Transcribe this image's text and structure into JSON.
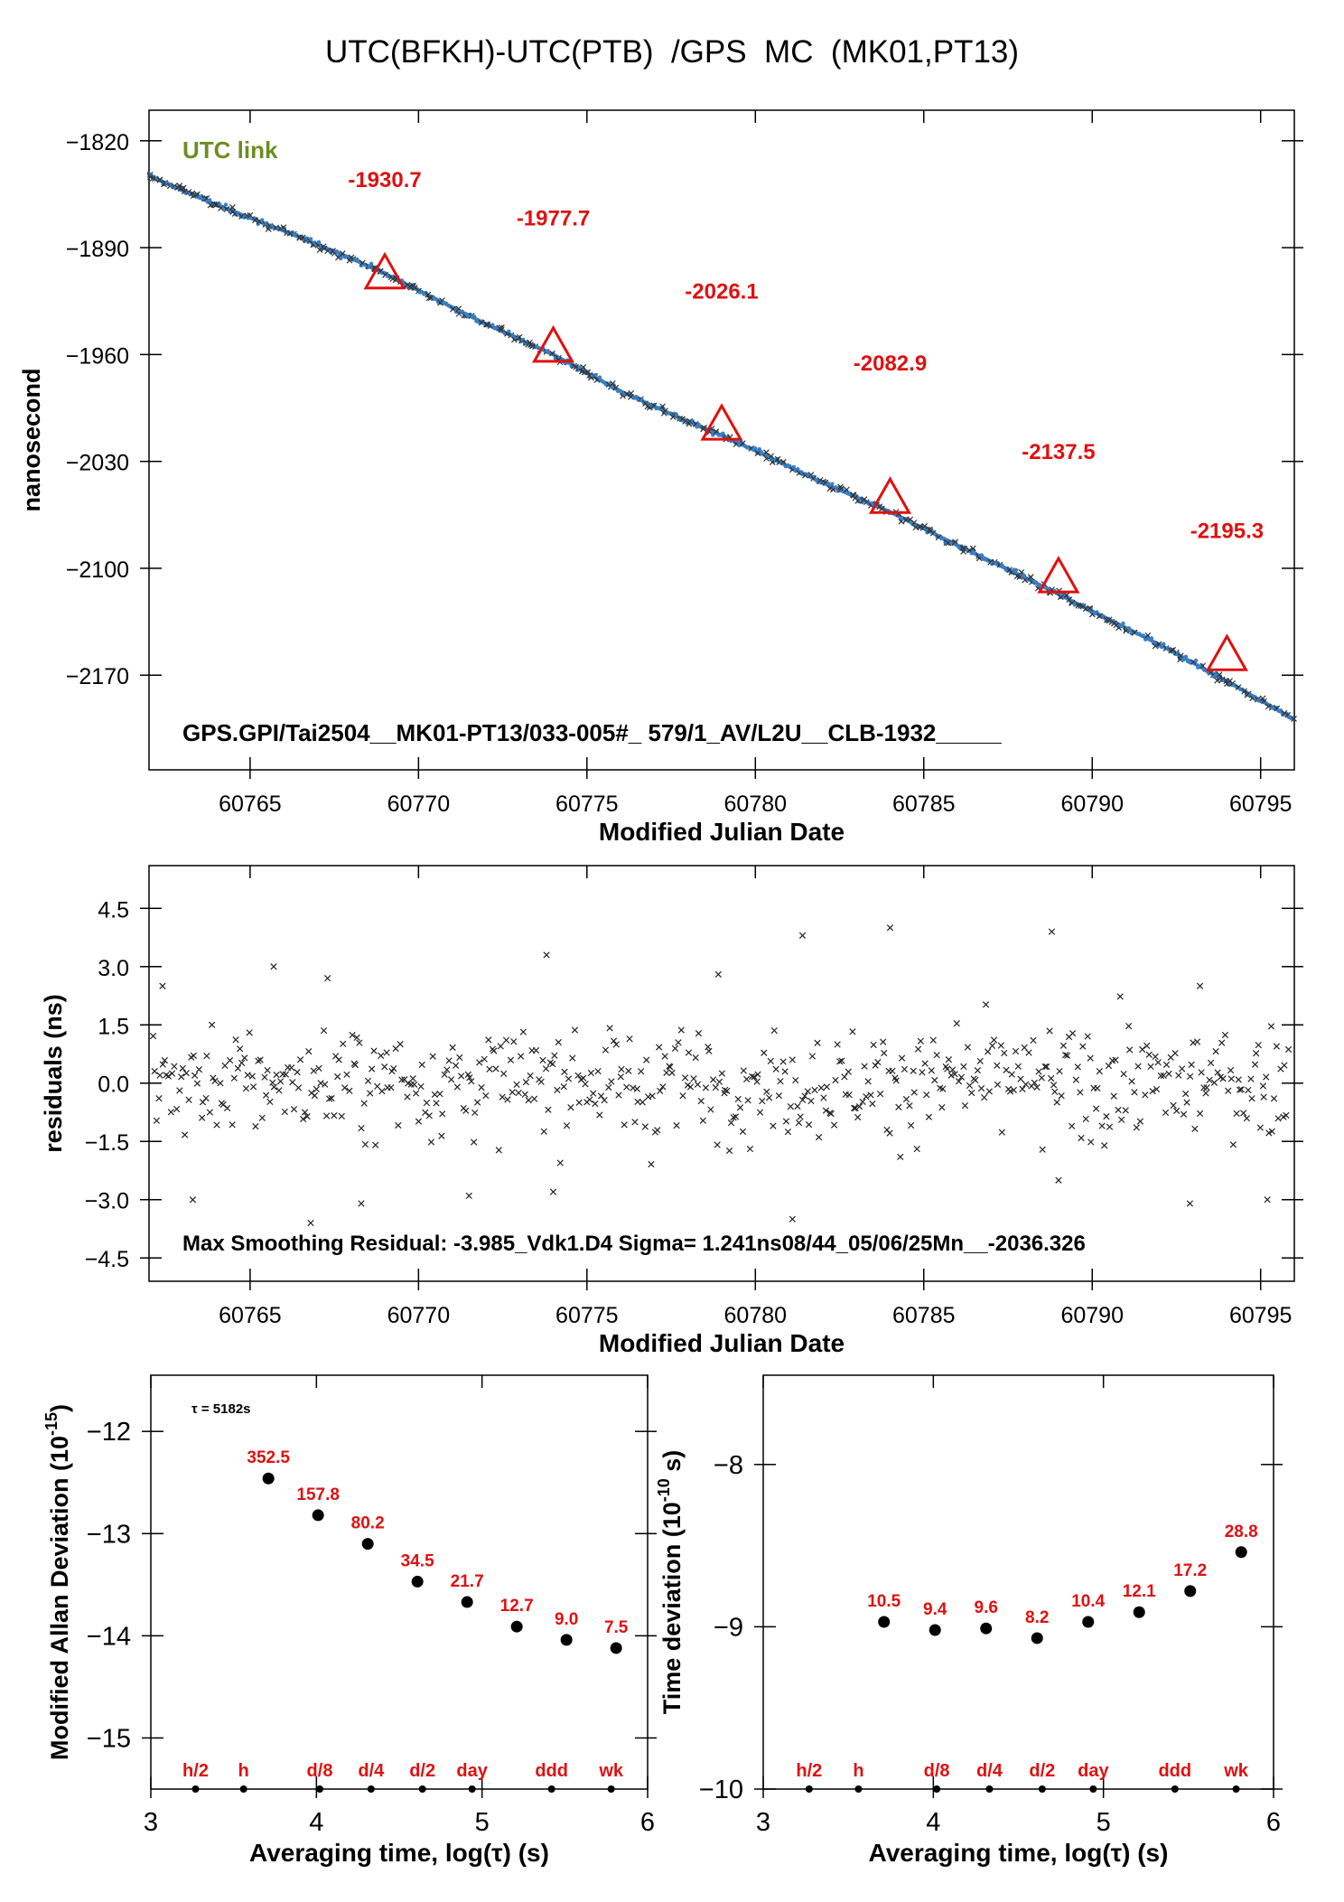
{
  "page_title": "UTC(BFKH)-UTC(PTB)  /GPS  MC  (MK01,PT13)",
  "colors": {
    "series": "#3a7fc4",
    "marker": "#e01010",
    "annotation": "#e01010",
    "link": "#6b8e23",
    "axis": "#000000"
  },
  "chart_data": [
    {
      "id": "link",
      "type": "scatter",
      "title": "UTC(BFKH)-UTC(PTB)  /GPS  MC  (MK01,PT13)",
      "xlabel": "Modified Julian Date",
      "ylabel": "nanosecond",
      "xlim": [
        60762,
        60796
      ],
      "ylim": [
        -2232,
        -1800
      ],
      "xticks": [
        60765,
        60770,
        60775,
        60780,
        60785,
        60790,
        60795
      ],
      "yticks": [
        -1820,
        -1890,
        -1960,
        -2030,
        -2100,
        -2170
      ],
      "tag": "UTC link",
      "footer": "GPS.GPI/Tai2504__MK01-PT13/033-005#_  579/1_AV/L2U__CLB-1932_____",
      "series": [
        {
          "x": [
            60762.0,
            60764.0,
            60766.0,
            60768.0,
            60769.0,
            60770.0,
            60772.0,
            60774.0,
            60776.0,
            60778.0,
            60779.0,
            60780.0,
            60782.0,
            60784.0,
            60786.0,
            60788.0,
            60789.0,
            60790.0,
            60792.0,
            60794.0,
            60796.0
          ],
          "y": [
            -1843.0,
            -1862.0,
            -1879.0,
            -1897.0,
            -1907.0,
            -1918.0,
            -1940.0,
            -1960.0,
            -1984.0,
            -2004.0,
            -2013.0,
            -2023.0,
            -2044.0,
            -2063.0,
            -2085.0,
            -2106.0,
            -2117.0,
            -2128.0,
            -2150.0,
            -2174.0,
            -2199.0
          ]
        }
      ],
      "markers": {
        "x": [
          60769,
          60774,
          60779,
          60784,
          60789,
          60794
        ],
        "y": [
          -1907,
          -1955,
          -2006,
          -2054,
          -2106,
          -2157
        ]
      },
      "annotations": [
        {
          "x": 60769.0,
          "y": -1845.0,
          "text": "-1930.7"
        },
        {
          "x": 60774.0,
          "y": -1870.0,
          "text": "-1977.7"
        },
        {
          "x": 60779.0,
          "y": -1918.0,
          "text": "-2026.1"
        },
        {
          "x": 60784.0,
          "y": -1965.0,
          "text": "-2082.9"
        },
        {
          "x": 60789.0,
          "y": -2023.0,
          "text": "-2137.5"
        },
        {
          "x": 60794.0,
          "y": -2075.0,
          "text": "-2195.3"
        }
      ]
    },
    {
      "id": "residuals",
      "type": "scatter",
      "xlabel": "Modified Julian Date",
      "ylabel": "residuals (ns)",
      "xlim": [
        60762,
        60796
      ],
      "ylim": [
        -5.1,
        5.6
      ],
      "xticks": [
        60765,
        60770,
        60775,
        60780,
        60785,
        60790,
        60795
      ],
      "yticks": [
        4.5,
        3.0,
        1.5,
        0.0,
        -1.5,
        -3.0,
        -4.5
      ],
      "ytick_labels": [
        "4.5",
        "3.0",
        "1.5",
        "0.0",
        "−1.5",
        "−3.0",
        "−4.5"
      ],
      "footer": "Max Smoothing Residual: -3.985_Vdk1.D4  Sigma= 1.241ns08/44_05/06/25Mn__-2036.326",
      "outliers": {
        "x": [
          60762.4,
          60763.3,
          60765.7,
          60766.8,
          60767.3,
          60768.3,
          60771.5,
          60773.8,
          60774.0,
          60778.9,
          60781.1,
          60781.4,
          60784.0,
          60788.8,
          60789.0,
          60792.9,
          60793.2,
          60795.2
        ],
        "y": [
          2.5,
          -3.0,
          3.0,
          -3.6,
          2.7,
          -3.1,
          -2.9,
          3.3,
          -2.8,
          2.8,
          -3.5,
          3.8,
          4.0,
          3.9,
          -2.5,
          -3.1,
          2.5,
          -3.0
        ]
      },
      "random_points": 560
    },
    {
      "id": "mdev",
      "type": "scatter",
      "xlabel": "Averaging time, log(τ) (s)",
      "ylabel": "Modified Allan Deviation (10^-15)",
      "xlim": [
        3,
        6
      ],
      "ylim": [
        -15.5,
        -11.45
      ],
      "xticks": [
        3,
        4,
        5,
        6
      ],
      "yticks": [
        -12,
        -13,
        -14,
        -15
      ],
      "tau_note": "τ = 5182s",
      "x": [
        3.71,
        4.01,
        4.31,
        4.61,
        4.91,
        5.21,
        5.51,
        5.81
      ],
      "y": [
        -12.46,
        -12.82,
        -13.1,
        -13.47,
        -13.67,
        -13.91,
        -14.04,
        -14.12
      ],
      "value_labels": [
        "352.5",
        "157.8",
        "80.2",
        "34.5",
        "21.7",
        "12.7",
        "9.0",
        "7.5"
      ],
      "tau_labels": [
        {
          "x": 3.27,
          "text": "h/2"
        },
        {
          "x": 3.56,
          "text": "h"
        },
        {
          "x": 4.02,
          "text": "d/8"
        },
        {
          "x": 4.33,
          "text": "d/4"
        },
        {
          "x": 4.64,
          "text": "d/2"
        },
        {
          "x": 4.94,
          "text": "day"
        },
        {
          "x": 5.42,
          "text": "ddd"
        },
        {
          "x": 5.78,
          "text": "wk"
        }
      ]
    },
    {
      "id": "tdev",
      "type": "scatter",
      "xlabel": "Averaging time, log(τ) (s)",
      "ylabel": "Time deviation (10^-10 s)",
      "xlim": [
        3,
        6
      ],
      "ylim": [
        -10,
        -7.45
      ],
      "xticks": [
        3,
        4,
        5,
        6
      ],
      "yticks": [
        -8,
        -9,
        -10
      ],
      "x": [
        3.71,
        4.01,
        4.31,
        4.61,
        4.91,
        5.21,
        5.51,
        5.81
      ],
      "y": [
        -8.97,
        -9.02,
        -9.01,
        -9.07,
        -8.97,
        -8.91,
        -8.78,
        -8.54
      ],
      "value_labels": [
        "10.5",
        "9.4",
        "9.6",
        "8.2",
        "10.4",
        "12.1",
        "17.2",
        "28.8"
      ],
      "tau_labels": [
        {
          "x": 3.27,
          "text": "h/2"
        },
        {
          "x": 3.56,
          "text": "h"
        },
        {
          "x": 4.02,
          "text": "d/8"
        },
        {
          "x": 4.33,
          "text": "d/4"
        },
        {
          "x": 4.64,
          "text": "d/2"
        },
        {
          "x": 4.94,
          "text": "day"
        },
        {
          "x": 5.42,
          "text": "ddd"
        },
        {
          "x": 5.78,
          "text": "wk"
        }
      ]
    }
  ]
}
